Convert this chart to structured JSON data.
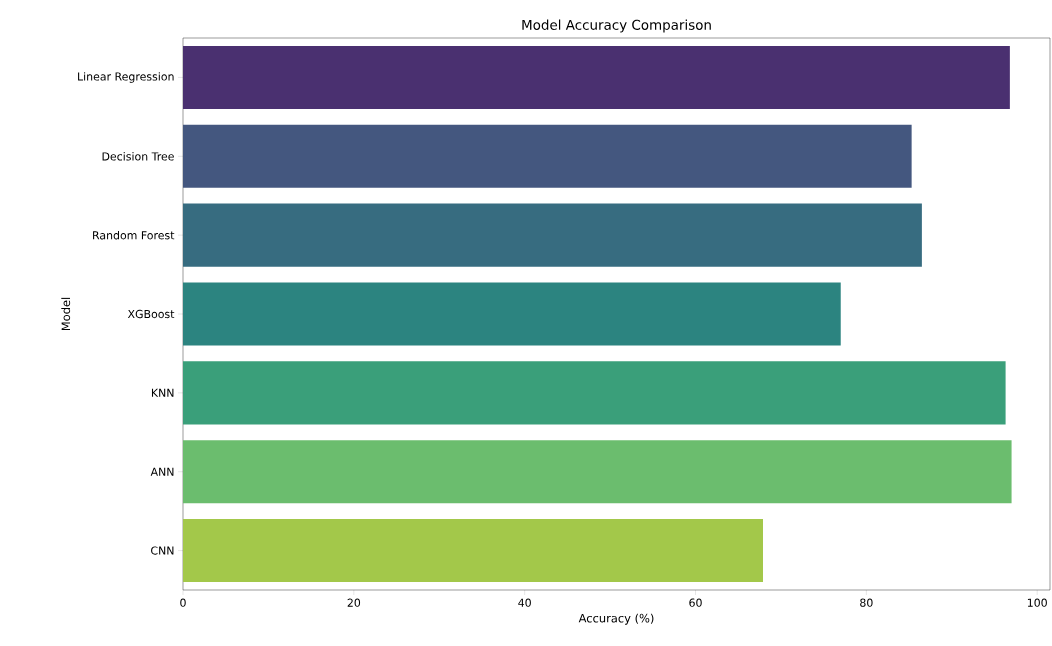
{
  "chart_data": {
    "type": "bar",
    "orientation": "horizontal",
    "title": "Model Accuracy Comparison",
    "xlabel": "Accuracy (%)",
    "ylabel": "Model",
    "categories": [
      "Linear Regression",
      "Decision Tree",
      "Random Forest",
      "XGBoost",
      "KNN",
      "ANN",
      "CNN"
    ],
    "values": [
      96.8,
      85.3,
      86.5,
      77.0,
      96.3,
      97.0,
      67.9
    ],
    "colors": [
      "#4a3070",
      "#44577f",
      "#376c80",
      "#2c8480",
      "#3a9f7a",
      "#6bbd6e",
      "#a3c84a"
    ],
    "xlim": [
      0,
      101.5
    ],
    "xticks": [
      0,
      20,
      40,
      60,
      80,
      100
    ]
  }
}
